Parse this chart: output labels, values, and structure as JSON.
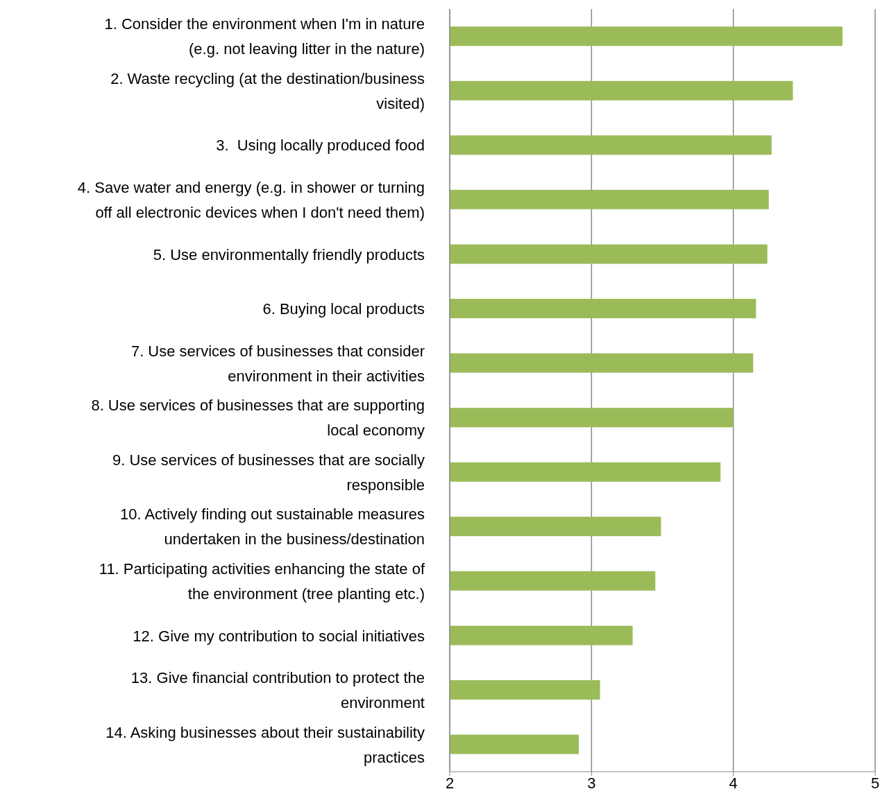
{
  "chart_data": {
    "type": "bar",
    "orientation": "horizontal",
    "categories": [
      "1. Consider the environment when I'm in nature (e.g. not leaving litter in the nature)",
      "2. Waste recycling (at the destination/business visited)",
      "3.  Using locally produced food",
      "4. Save water and energy (e.g. in shower or turning off all electronic devices when I don't need them)",
      "5. Use environmentally friendly products",
      "6. Buying local products",
      "7. Use services of businesses that consider environment in their activities",
      "8. Use services of businesses that are supporting local economy",
      "9. Use services of businesses that are socially responsible",
      "10. Actively finding out sustainable measures undertaken in the business/destination",
      "11. Participating activities enhancing the state of the environment (tree planting etc.)",
      "12. Give my contribution to social initiatives",
      "13. Give financial contribution to protect the environment",
      "14. Asking businesses about their sustainability practices"
    ],
    "values": [
      4.77,
      4.42,
      4.27,
      4.25,
      4.24,
      4.16,
      4.14,
      4.0,
      3.91,
      3.49,
      3.45,
      3.29,
      3.06,
      2.91
    ],
    "color": "#9bbb59",
    "xlim": [
      2,
      5
    ],
    "xticks": [
      2,
      3,
      4,
      5
    ],
    "grid": "x"
  }
}
